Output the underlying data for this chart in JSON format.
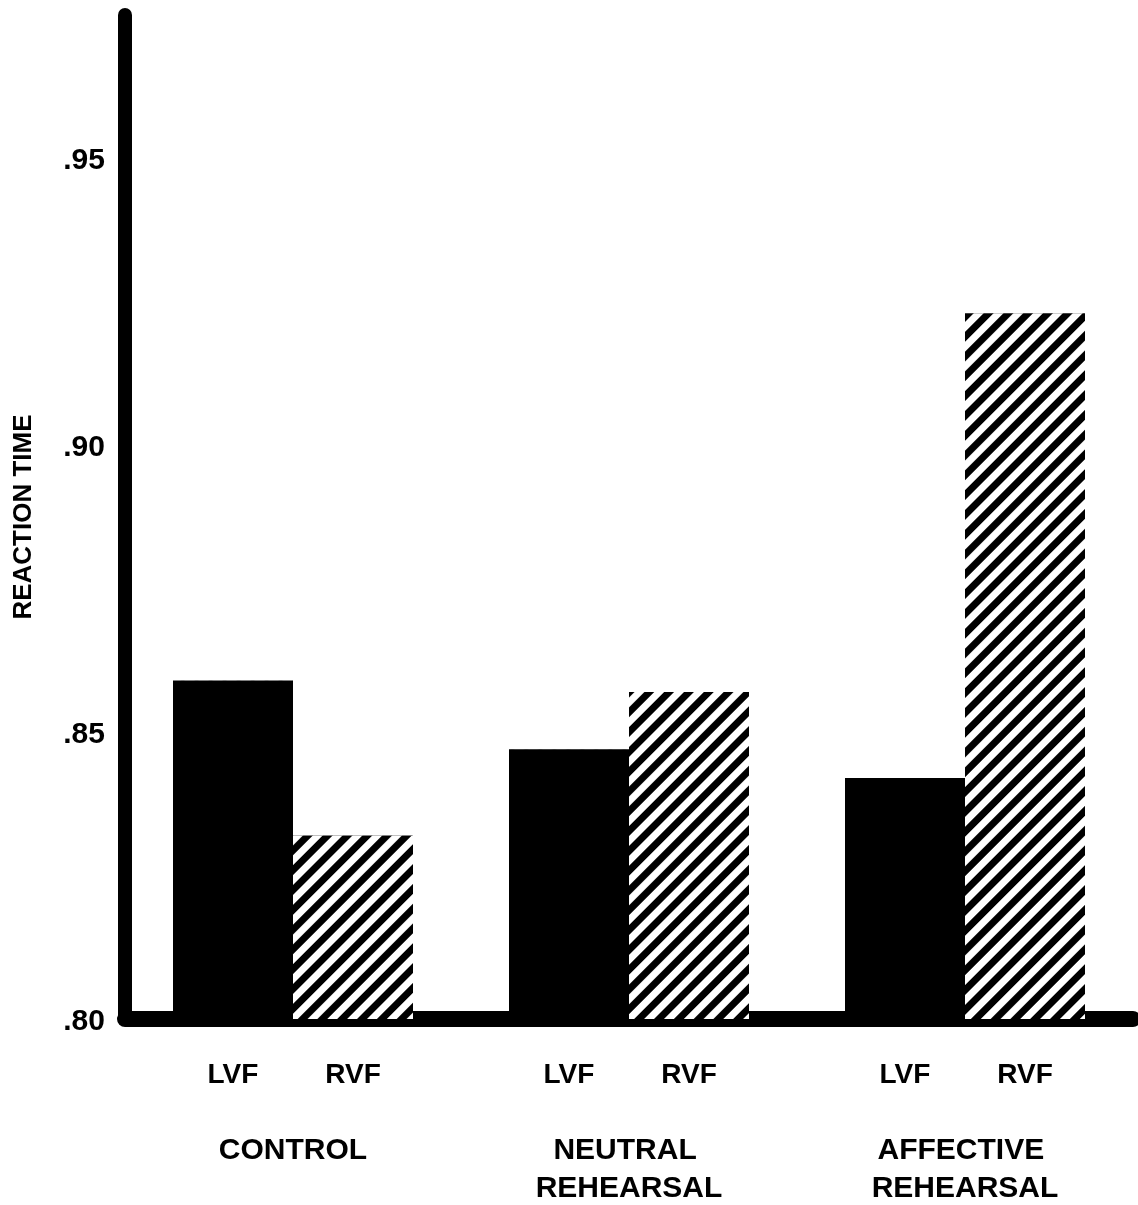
{
  "chart_data": {
    "type": "bar",
    "ylabel": "REACTION TIME",
    "categories": [
      "CONTROL",
      "NEUTRAL REHEARSAL",
      "AFFECTIVE REHEARSAL"
    ],
    "series": [
      {
        "name": "LVF",
        "color": "#000000",
        "values": [
          0.859,
          0.847,
          0.842
        ]
      },
      {
        "name": "RVF",
        "color": "#000000",
        "values": [
          0.832,
          0.857,
          0.923
        ]
      }
    ],
    "ylim": [
      0.8,
      0.975
    ],
    "yticks": [
      {
        "value": 0.8,
        "label": ".80"
      },
      {
        "value": 0.85,
        "label": ".85"
      },
      {
        "value": 0.9,
        "label": ".90"
      },
      {
        "value": 0.95,
        "label": ".95"
      }
    ],
    "grid": false,
    "legend": false
  }
}
